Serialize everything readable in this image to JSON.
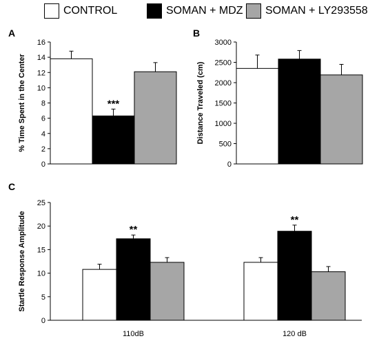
{
  "legend": [
    {
      "name": "CONTROL",
      "color": "#ffffff"
    },
    {
      "name": "SOMAN + MDZ",
      "color": "#000000"
    },
    {
      "name": "SOMAN + LY293558",
      "color": "#a6a6a6"
    }
  ],
  "chart_data": [
    {
      "panel": "A",
      "type": "bar",
      "ylabel": "% Time Spent in the Center",
      "ylim": [
        0,
        16
      ],
      "yticks": [
        0,
        2,
        4,
        6,
        8,
        10,
        12,
        14,
        16
      ],
      "groups": [
        {
          "label": "",
          "significance": "***",
          "values": [
            13.8,
            6.3,
            12.1
          ],
          "errors": [
            1.0,
            0.9,
            1.2
          ]
        }
      ]
    },
    {
      "panel": "B",
      "type": "bar",
      "ylabel": "Distance Traveled (cm)",
      "ylim": [
        0,
        3000
      ],
      "yticks": [
        0,
        500,
        1000,
        1500,
        2000,
        2500,
        3000
      ],
      "groups": [
        {
          "label": "",
          "significance": "",
          "values": [
            2350,
            2580,
            2190
          ],
          "errors": [
            330,
            210,
            260
          ]
        }
      ]
    },
    {
      "panel": "C",
      "type": "bar",
      "ylabel": "Startle Response Amplitude",
      "ylim": [
        0,
        25
      ],
      "yticks": [
        0,
        5,
        10,
        15,
        20,
        25
      ],
      "groups": [
        {
          "label": "110dB",
          "significance": "**",
          "values": [
            10.8,
            17.3,
            12.3
          ],
          "errors": [
            1.1,
            0.8,
            1.0
          ]
        },
        {
          "label": "120 dB",
          "significance": "**",
          "values": [
            12.3,
            18.9,
            10.3
          ],
          "errors": [
            1.0,
            1.3,
            1.1
          ]
        }
      ]
    }
  ]
}
